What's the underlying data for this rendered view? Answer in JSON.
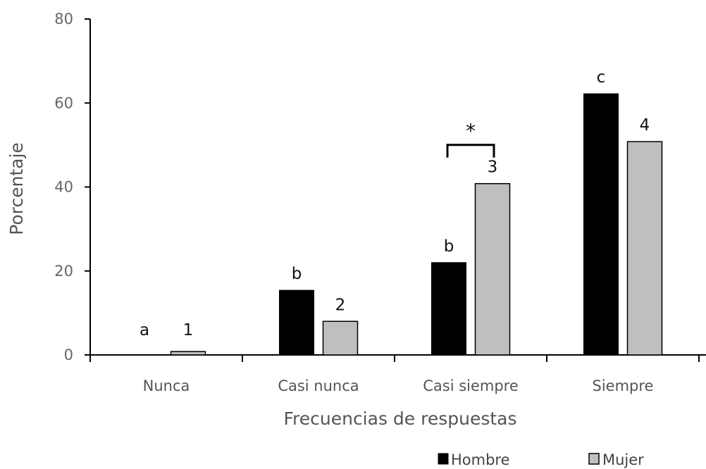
{
  "chart_data": {
    "type": "bar",
    "title": "",
    "xlabel": "Frecuencias de respuestas",
    "ylabel": "Porcentaje",
    "ylim": [
      0,
      80
    ],
    "yticks": [
      0,
      20,
      40,
      60,
      80
    ],
    "grid": false,
    "legend_position": "bottom-right",
    "categories": [
      "Nunca",
      "Casi nunca",
      "Casi siempre",
      "Siempre"
    ],
    "series": [
      {
        "name": "Hombre",
        "color": "#000000",
        "values": [
          0,
          15.4,
          22.0,
          62.2
        ],
        "labels": [
          "a",
          "b",
          "b",
          "c"
        ]
      },
      {
        "name": "Mujer",
        "color": "#bfbfbf",
        "values": [
          0.8,
          8.0,
          40.8,
          50.8
        ],
        "labels": [
          "1",
          "2",
          "3",
          "4"
        ]
      }
    ],
    "annotations": [
      {
        "text": "*",
        "category": "Casi siempre",
        "type": "bracket"
      }
    ]
  }
}
